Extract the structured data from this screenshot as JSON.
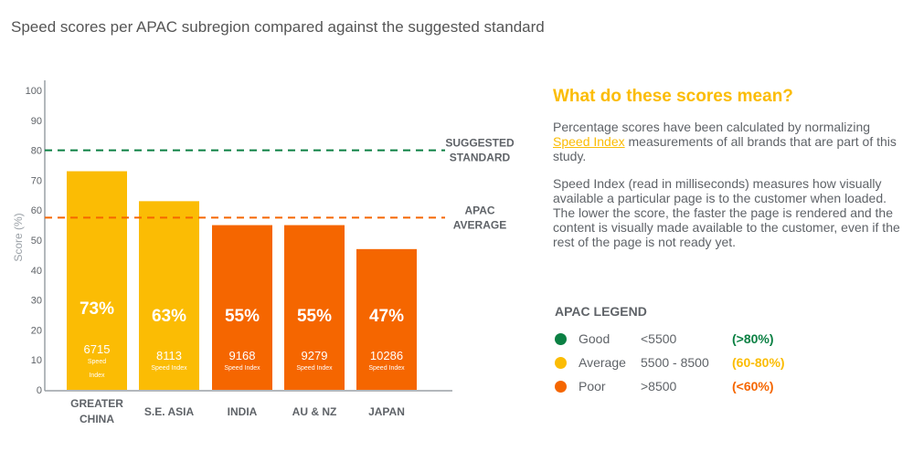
{
  "title": "Speed scores per APAC subregion compared against the suggested standard",
  "chart_data": {
    "type": "bar",
    "title": "Speed scores per APAC subregion compared against the suggested standard",
    "ylabel": "Score (%)",
    "ylim": [
      0,
      100
    ],
    "yticks": [
      0,
      10,
      20,
      30,
      40,
      50,
      60,
      70,
      80,
      90,
      100
    ],
    "categories": [
      "GREATER CHINA",
      "S.E. ASIA",
      "INDIA",
      "AU & NZ",
      "JAPAN"
    ],
    "values": [
      73,
      63,
      55,
      55,
      47
    ],
    "value_labels": [
      "73%",
      "63%",
      "55%",
      "55%",
      "47%"
    ],
    "speed_index": [
      "6715",
      "8113",
      "9168",
      "9279",
      "10286"
    ],
    "speed_index_label": "Speed Index",
    "bar_colors": [
      "#fbbc04",
      "#fbbc04",
      "#f56600",
      "#f56600",
      "#f56600"
    ],
    "reference_lines": [
      {
        "label": "SUGGESTED STANDARD",
        "value": 80,
        "color": "#0b8043"
      },
      {
        "label": "APAC AVERAGE",
        "value": 57.5,
        "color": "#f56600"
      }
    ]
  },
  "info": {
    "heading": "What do these scores mean?",
    "p1_before": "Percentage scores have been calculated by normalizing ",
    "p1_link": "Speed Index",
    "p1_after": " measurements of all brands that are part of this study.",
    "p2": "Speed Index (read in milliseconds) measures how visually available a particular page is to the customer when loaded. The lower the score, the faster the page is rendered and the content is visually made available to the customer, even if the rest of the page is not ready yet."
  },
  "legend": {
    "title": "APAC LEGEND",
    "items": [
      {
        "label": "Good",
        "range": "<5500",
        "pct": "(>80%)",
        "color": "#0b8043"
      },
      {
        "label": "Average",
        "range": "5500 - 8500",
        "pct": "(60-80%)",
        "color": "#fbbc04"
      },
      {
        "label": "Poor",
        "range": ">8500",
        "pct": "(<60%)",
        "color": "#f56600"
      }
    ]
  }
}
